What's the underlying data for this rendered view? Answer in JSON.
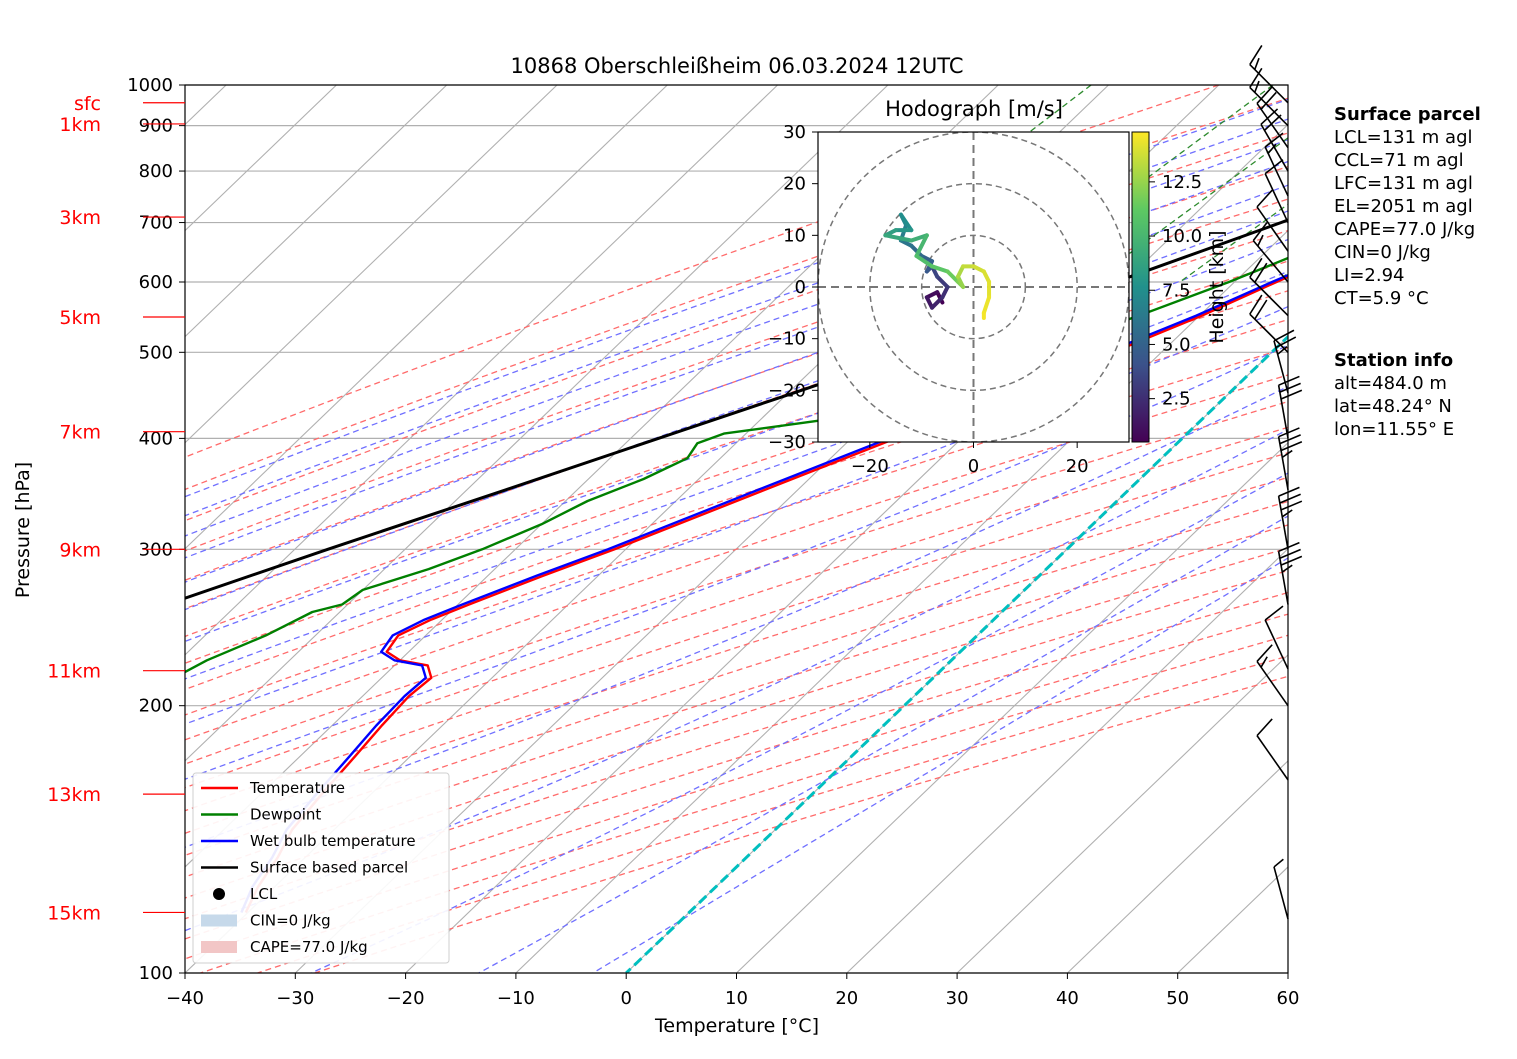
{
  "chart_data": {
    "type": "line",
    "title": "10868 Oberschleißheim 06.03.2024 12UTC",
    "xlabel": "Temperature [°C]",
    "ylabel": "Pressure [hPa]",
    "xlim": [
      -40,
      60
    ],
    "ylim": [
      1000,
      100
    ],
    "yscale": "log",
    "grid": true,
    "x_ticks": [
      -40,
      -30,
      -20,
      -10,
      0,
      10,
      20,
      30,
      40,
      50,
      60
    ],
    "y_ticks": [
      100,
      200,
      300,
      400,
      500,
      600,
      700,
      800,
      900,
      1000
    ],
    "height_labels": [
      {
        "label": "sfc",
        "p": 955
      },
      {
        "label": "1km",
        "p": 904
      },
      {
        "label": "3km",
        "p": 710
      },
      {
        "label": "5km",
        "p": 548
      },
      {
        "label": "7km",
        "p": 407
      },
      {
        "label": "9km",
        "p": 300
      },
      {
        "label": "11km",
        "p": 219
      },
      {
        "label": "13km",
        "p": 159
      },
      {
        "label": "15km",
        "p": 117
      }
    ],
    "series": [
      {
        "name": "Temperature",
        "color": "#ff0000",
        "points": [
          [
            955,
            6.8
          ],
          [
            930,
            4.8
          ],
          [
            900,
            3.3
          ],
          [
            850,
            2.3
          ],
          [
            800,
            1.4
          ],
          [
            780,
            1.6
          ],
          [
            750,
            2.0
          ],
          [
            700,
            0.7
          ],
          [
            650,
            -2.7
          ],
          [
            600,
            -6.2
          ],
          [
            550,
            -9.8
          ],
          [
            500,
            -14.4
          ],
          [
            450,
            -20.0
          ],
          [
            400,
            -26.0
          ],
          [
            350,
            -33.0
          ],
          [
            300,
            -41.0
          ],
          [
            280,
            -45.0
          ],
          [
            260,
            -49.0
          ],
          [
            250,
            -51.0
          ],
          [
            240,
            -52.5
          ],
          [
            230,
            -52.0
          ],
          [
            225,
            -50.0
          ],
          [
            222,
            -47.0
          ],
          [
            215,
            -45.5
          ],
          [
            205,
            -45.8
          ],
          [
            190,
            -45.5
          ],
          [
            175,
            -45.0
          ],
          [
            160,
            -44.5
          ],
          [
            145,
            -43.8
          ],
          [
            135,
            -42.5
          ],
          [
            125,
            -41.5
          ],
          [
            117,
            -40.2
          ]
        ]
      },
      {
        "name": "Dewpoint",
        "color": "#008000",
        "points": [
          [
            955,
            5.5
          ],
          [
            930,
            4.0
          ],
          [
            900,
            2.5
          ],
          [
            850,
            0.5
          ],
          [
            800,
            0.5
          ],
          [
            780,
            0.8
          ],
          [
            750,
            0.0
          ],
          [
            700,
            -2.5
          ],
          [
            650,
            -6.5
          ],
          [
            600,
            -10.5
          ],
          [
            550,
            -15.5
          ],
          [
            500,
            -21.5
          ],
          [
            470,
            -24.0
          ],
          [
            445,
            -30.0
          ],
          [
            420,
            -34.0
          ],
          [
            405,
            -42.0
          ],
          [
            395,
            -43.5
          ],
          [
            380,
            -43.0
          ],
          [
            360,
            -45.0
          ],
          [
            340,
            -48.0
          ],
          [
            320,
            -50.0
          ],
          [
            300,
            -53.0
          ],
          [
            285,
            -56.0
          ],
          [
            270,
            -60.0
          ],
          [
            260,
            -60.5
          ],
          [
            255,
            -62.5
          ],
          [
            240,
            -64.5
          ],
          [
            225,
            -67.5
          ],
          [
            210,
            -69.5
          ],
          [
            200,
            -70.0
          ],
          [
            190,
            -69.0
          ],
          [
            175,
            -68.5
          ],
          [
            165,
            -67.5
          ],
          [
            155,
            -67.0
          ],
          [
            145,
            -66.5
          ],
          [
            135,
            -66.5
          ],
          [
            128,
            -66.0
          ],
          [
            120,
            -65.5
          ],
          [
            117,
            -64.0
          ]
        ]
      },
      {
        "name": "Wet bulb temperature",
        "color": "#0000ff",
        "points": [
          [
            955,
            6.0
          ],
          [
            930,
            4.3
          ],
          [
            900,
            2.9
          ],
          [
            850,
            1.5
          ],
          [
            800,
            1.0
          ],
          [
            780,
            1.2
          ],
          [
            750,
            1.7
          ],
          [
            700,
            0.3
          ],
          [
            650,
            -3.0
          ],
          [
            600,
            -6.6
          ],
          [
            550,
            -10.3
          ],
          [
            500,
            -15.0
          ],
          [
            450,
            -20.6
          ],
          [
            400,
            -26.6
          ],
          [
            350,
            -33.6
          ],
          [
            300,
            -41.6
          ],
          [
            280,
            -45.6
          ],
          [
            260,
            -49.6
          ],
          [
            250,
            -51.6
          ],
          [
            240,
            -53.0
          ],
          [
            230,
            -52.5
          ],
          [
            225,
            -50.5
          ],
          [
            222,
            -47.5
          ],
          [
            215,
            -46.0
          ],
          [
            205,
            -46.2
          ],
          [
            190,
            -46.0
          ],
          [
            175,
            -45.5
          ],
          [
            160,
            -45.0
          ],
          [
            145,
            -44.3
          ],
          [
            135,
            -43.0
          ],
          [
            125,
            -42.0
          ],
          [
            117,
            -40.6
          ]
        ]
      },
      {
        "name": "Surface based parcel",
        "color": "#000000",
        "points": [
          [
            955,
            7.0
          ],
          [
            940,
            6.2
          ],
          [
            920,
            4.8
          ],
          [
            900,
            3.3
          ],
          [
            870,
            1.4
          ],
          [
            850,
            0.0
          ],
          [
            800,
            -3.5
          ],
          [
            750,
            -7.3
          ],
          [
            700,
            -11.4
          ],
          [
            650,
            -15.9
          ],
          [
            600,
            -20.8
          ],
          [
            550,
            -26.3
          ],
          [
            500,
            -32.5
          ],
          [
            450,
            -39.5
          ],
          [
            400,
            -47.5
          ],
          [
            350,
            -56.5
          ],
          [
            300,
            -67.0
          ],
          [
            250,
            -79.0
          ],
          [
            200,
            -93.0
          ],
          [
            170,
            -102.0
          ]
        ]
      }
    ],
    "lcl": {
      "p": 940,
      "t": 6.8,
      "label": "LCL"
    },
    "cin_label": "CIN=0 J/kg",
    "cape_label": "CAPE=77.0 J/kg",
    "freezing_level": [
      [
        1000,
        0
      ],
      [
        100,
        60
      ]
    ],
    "hodograph": {
      "title": "Hodograph [m/s]",
      "xlim": [
        -30,
        30
      ],
      "ylim": [
        -30,
        30
      ],
      "x_ticks": [
        -20,
        0,
        20
      ],
      "y_ticks": [
        -30,
        -20,
        -10,
        0,
        10,
        20,
        30
      ],
      "rings": [
        10,
        20,
        30
      ],
      "colorbar_label": "Height [km]",
      "colorbar_ticks": [
        2.5,
        5.0,
        7.5,
        10.0,
        12.5
      ],
      "colorbar_range": [
        0.5,
        14.8
      ],
      "trace": [
        [
          -6,
          -3,
          0.5
        ],
        [
          -7,
          -1,
          1
        ],
        [
          -9,
          -2,
          1.5
        ],
        [
          -8,
          -4,
          2
        ],
        [
          -6,
          -2,
          2.5
        ],
        [
          -5,
          0,
          3
        ],
        [
          -7,
          2,
          3.5
        ],
        [
          -8,
          4,
          4
        ],
        [
          -9,
          3,
          4.5
        ],
        [
          -8,
          5,
          5
        ],
        [
          -10,
          6,
          5.5
        ],
        [
          -12,
          8,
          6
        ],
        [
          -14,
          9,
          6.5
        ],
        [
          -13,
          12,
          7
        ],
        [
          -14,
          14,
          7.5
        ],
        [
          -12,
          11,
          8
        ],
        [
          -15,
          11,
          8.5
        ],
        [
          -17,
          10,
          9
        ],
        [
          -12,
          9,
          9.5
        ],
        [
          -9,
          10,
          10
        ],
        [
          -11,
          6,
          10.5
        ],
        [
          -8,
          4,
          11
        ],
        [
          -5,
          3,
          11.5
        ],
        [
          -3,
          1,
          12
        ],
        [
          -2,
          0,
          12.5
        ],
        [
          -3,
          2,
          13
        ],
        [
          -2,
          4,
          13.5
        ],
        [
          0,
          4,
          13.8
        ],
        [
          2,
          3,
          14
        ],
        [
          3,
          1,
          14.2
        ],
        [
          3,
          -2,
          14.4
        ],
        [
          2,
          -5,
          14.6
        ],
        [
          2,
          -6,
          14.8
        ]
      ]
    },
    "wind_barbs": [
      {
        "p": 955,
        "speed_kt": 15,
        "dir": 270
      },
      {
        "p": 900,
        "speed_kt": 15,
        "dir": 270
      },
      {
        "p": 850,
        "speed_kt": 20,
        "dir": 280
      },
      {
        "p": 800,
        "speed_kt": 20,
        "dir": 285
      },
      {
        "p": 750,
        "speed_kt": 15,
        "dir": 290
      },
      {
        "p": 700,
        "speed_kt": 10,
        "dir": 290
      },
      {
        "p": 650,
        "speed_kt": 10,
        "dir": 280
      },
      {
        "p": 600,
        "speed_kt": 15,
        "dir": 275
      },
      {
        "p": 550,
        "speed_kt": 20,
        "dir": 270
      },
      {
        "p": 500,
        "speed_kt": 20,
        "dir": 270
      },
      {
        "p": 450,
        "speed_kt": 25,
        "dir": 300
      },
      {
        "p": 400,
        "speed_kt": 30,
        "dir": 305
      },
      {
        "p": 350,
        "speed_kt": 35,
        "dir": 305
      },
      {
        "p": 300,
        "speed_kt": 35,
        "dir": 305
      },
      {
        "p": 260,
        "speed_kt": 35,
        "dir": 305
      },
      {
        "p": 220,
        "speed_kt": 10,
        "dir": 290
      },
      {
        "p": 200,
        "speed_kt": 15,
        "dir": 280
      },
      {
        "p": 165,
        "speed_kt": 10,
        "dir": 280
      },
      {
        "p": 115,
        "speed_kt": 5,
        "dir": 300
      }
    ],
    "legend": {
      "placement": "lower-left",
      "entries": [
        {
          "label": "Temperature",
          "color": "#ff0000",
          "kind": "line"
        },
        {
          "label": "Dewpoint",
          "color": "#008000",
          "kind": "line"
        },
        {
          "label": "Wet bulb temperature",
          "color": "#0000ff",
          "kind": "line"
        },
        {
          "label": "Surface based parcel",
          "color": "#000000",
          "kind": "line"
        },
        {
          "label": "LCL",
          "color": "#000000",
          "kind": "marker"
        },
        {
          "label": "CIN=0 J/kg",
          "color": "#c6d9ea",
          "kind": "patch"
        },
        {
          "label": "CAPE=77.0 J/kg",
          "color": "#f2c6c6",
          "kind": "patch"
        }
      ]
    }
  },
  "surface_parcel": {
    "heading": "Surface parcel",
    "lines": [
      "LCL=131 m agl",
      "CCL=71 m agl",
      "LFC=131 m agl",
      "EL=2051 m agl",
      "CAPE=77.0 J/kg",
      "CIN=0 J/kg",
      "LI=2.94",
      "CT=5.9 °C"
    ]
  },
  "station_info": {
    "heading": "Station info",
    "lines": [
      "alt=484.0 m",
      "lat=48.24° N",
      "lon=11.55° E"
    ]
  },
  "colors": {
    "temperature": "#ff0000",
    "dewpoint": "#008000",
    "wetbulb": "#0000ff",
    "parcel": "#000000",
    "isotherm_zero": "#00bfbf",
    "dry_adiabat": "#ff6b6b",
    "moist_adiabat": "#7070ff",
    "mixing_ratio": "#2e8b2e",
    "height_label": "#ff0000"
  }
}
